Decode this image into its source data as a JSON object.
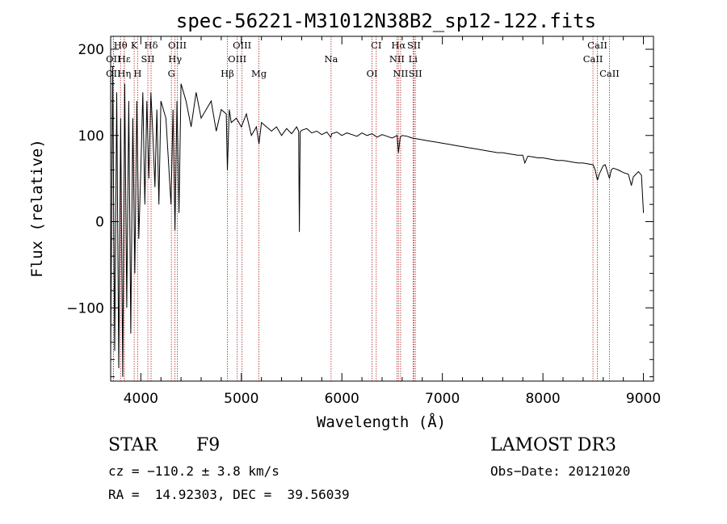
{
  "chart_data": {
    "type": "line",
    "title": "spec-56221-M31012N38B2_sp12-122.fits",
    "xlabel": "Wavelength (Å)",
    "ylabel": "Flux (relative)",
    "xlim": [
      3700,
      9100
    ],
    "ylim": [
      -185,
      215
    ],
    "xticks": [
      4000,
      5000,
      6000,
      7000,
      8000,
      9000
    ],
    "yticks": [
      -100,
      0,
      100,
      200
    ],
    "xtick_labels": [
      "4000",
      "5000",
      "6000",
      "7000",
      "8000",
      "9000"
    ],
    "ytick_labels": [
      "−100",
      "0",
      "100",
      "200"
    ],
    "series": [
      {
        "name": "spectrum",
        "x": [
          3700,
          3720,
          3740,
          3760,
          3780,
          3800,
          3820,
          3840,
          3860,
          3880,
          3900,
          3920,
          3940,
          3960,
          3980,
          4000,
          4020,
          4040,
          4060,
          4080,
          4100,
          4120,
          4140,
          4160,
          4180,
          4200,
          4250,
          4300,
          4320,
          4340,
          4360,
          4380,
          4400,
          4450,
          4500,
          4550,
          4600,
          4650,
          4700,
          4750,
          4800,
          4850,
          4861,
          4880,
          4900,
          4950,
          5000,
          5050,
          5100,
          5150,
          5175,
          5200,
          5250,
          5300,
          5350,
          5400,
          5450,
          5500,
          5550,
          5570,
          5577,
          5585,
          5600,
          5650,
          5700,
          5750,
          5800,
          5850,
          5890,
          5900,
          5950,
          6000,
          6050,
          6100,
          6150,
          6200,
          6250,
          6300,
          6350,
          6400,
          6450,
          6500,
          6550,
          6563,
          6580,
          6600,
          6650,
          6700,
          6750,
          6800,
          6850,
          6900,
          6950,
          7000,
          7050,
          7100,
          7150,
          7200,
          7250,
          7300,
          7350,
          7400,
          7450,
          7500,
          7550,
          7600,
          7650,
          7700,
          7750,
          7800,
          7820,
          7850,
          7900,
          7950,
          8000,
          8050,
          8100,
          8150,
          8200,
          8250,
          8300,
          8350,
          8400,
          8450,
          8500,
          8520,
          8542,
          8560,
          8600,
          8620,
          8662,
          8680,
          8700,
          8750,
          8800,
          8850,
          8880,
          8900,
          8950,
          8980,
          9000
        ],
        "y": [
          -160,
          180,
          -150,
          150,
          -170,
          120,
          -180,
          160,
          -100,
          140,
          -130,
          120,
          -60,
          140,
          -20,
          60,
          150,
          20,
          140,
          50,
          150,
          100,
          40,
          130,
          20,
          140,
          120,
          20,
          130,
          -10,
          140,
          10,
          160,
          140,
          110,
          150,
          120,
          130,
          140,
          105,
          130,
          125,
          60,
          130,
          115,
          120,
          110,
          125,
          100,
          110,
          90,
          115,
          110,
          105,
          110,
          100,
          108,
          102,
          110,
          105,
          -12,
          104,
          106,
          108,
          103,
          105,
          101,
          104,
          98,
          102,
          104,
          100,
          103,
          101,
          99,
          103,
          100,
          102,
          98,
          101,
          99,
          97,
          100,
          80,
          98,
          100,
          99,
          97,
          96,
          95,
          94,
          93,
          92,
          91,
          90,
          89,
          88,
          87,
          86,
          85,
          84,
          83,
          82,
          81,
          80,
          80,
          79,
          78,
          77,
          77,
          68,
          76,
          75,
          74,
          74,
          73,
          72,
          71,
          71,
          70,
          69,
          68,
          68,
          67,
          66,
          60,
          48,
          55,
          65,
          66,
          50,
          60,
          62,
          60,
          57,
          55,
          42,
          52,
          58,
          54,
          10
        ]
      }
    ],
    "emission_lines": [
      {
        "label": "Hθ",
        "x": 3798,
        "row": 0
      },
      {
        "label": "K",
        "x": 3934,
        "row": 0
      },
      {
        "label": "Hδ",
        "x": 4102,
        "row": 0
      },
      {
        "label": "OIII",
        "x": 4363,
        "row": 0
      },
      {
        "label": "OIII",
        "x": 5007,
        "row": 0
      },
      {
        "label": "CI",
        "x": 6342,
        "row": 0
      },
      {
        "label": "Hα",
        "x": 6563,
        "row": 0
      },
      {
        "label": "SII",
        "x": 6717,
        "row": 0
      },
      {
        "label": "CaII",
        "x": 8542,
        "row": 0
      },
      {
        "label": "OII",
        "x": 3727,
        "row": 1
      },
      {
        "label": "Hε",
        "x": 3835,
        "row": 1
      },
      {
        "label": "SII",
        "x": 4070,
        "row": 1
      },
      {
        "label": "Hγ",
        "x": 4340,
        "row": 1
      },
      {
        "label": "OIII",
        "x": 4959,
        "row": 1
      },
      {
        "label": "Na",
        "x": 5893,
        "row": 1
      },
      {
        "label": "NII",
        "x": 6548,
        "row": 1
      },
      {
        "label": "Li",
        "x": 6708,
        "row": 1
      },
      {
        "label": "CaII",
        "x": 8498,
        "row": 1
      },
      {
        "label": "OII",
        "x": 3727,
        "row": 2
      },
      {
        "label": "Hη",
        "x": 3835,
        "row": 2
      },
      {
        "label": "H",
        "x": 3968,
        "row": 2
      },
      {
        "label": "G",
        "x": 4304,
        "row": 2
      },
      {
        "label": "Hβ",
        "x": 4861,
        "row": 2
      },
      {
        "label": "Mg",
        "x": 5175,
        "row": 2
      },
      {
        "label": "OI",
        "x": 6300,
        "row": 2
      },
      {
        "label": "NII",
        "x": 6584,
        "row": 2
      },
      {
        "label": "SII",
        "x": 6731,
        "row": 2
      },
      {
        "label": "CaII",
        "x": 8662,
        "row": 2
      }
    ]
  },
  "info": {
    "class": "STAR",
    "subclass": "F9",
    "survey": "LAMOST DR3",
    "cz": "cz = −110.2 ± 3.8 km/s",
    "obs_date": "Obs−Date: 20121020",
    "radec": "RA =  14.92303, DEC =  39.56039"
  }
}
